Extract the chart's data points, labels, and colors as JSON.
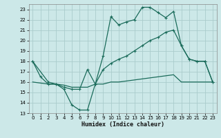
{
  "xlabel": "Humidex (Indice chaleur)",
  "xlim": [
    -0.5,
    23.5
  ],
  "ylim": [
    13,
    23.5
  ],
  "yticks": [
    13,
    14,
    15,
    16,
    17,
    18,
    19,
    20,
    21,
    22,
    23
  ],
  "xticks": [
    0,
    1,
    2,
    3,
    4,
    5,
    6,
    7,
    8,
    9,
    10,
    11,
    12,
    13,
    14,
    15,
    16,
    17,
    18,
    19,
    20,
    21,
    22,
    23
  ],
  "bg_color": "#cce8e8",
  "grid_color": "#aacccc",
  "line_color": "#1a6b5a",
  "curve1_x": [
    0,
    1,
    2,
    3,
    4,
    5,
    6,
    7,
    8,
    9,
    10,
    11,
    12,
    13,
    14,
    15,
    16,
    17,
    18,
    19,
    20,
    21,
    22,
    23
  ],
  "curve1_y": [
    18.0,
    16.5,
    15.8,
    15.8,
    15.3,
    13.8,
    13.3,
    13.3,
    15.8,
    18.5,
    22.3,
    21.5,
    21.8,
    22.0,
    23.2,
    23.2,
    22.7,
    22.2,
    22.8,
    19.5,
    18.2,
    18.0,
    18.0,
    16.0
  ],
  "curve2_x": [
    0,
    2,
    3,
    4,
    5,
    6,
    7,
    8,
    9,
    10,
    11,
    12,
    13,
    14,
    15,
    16,
    17,
    18,
    19,
    20,
    21,
    22,
    23
  ],
  "curve2_y": [
    18.0,
    16.0,
    15.8,
    15.5,
    15.3,
    15.3,
    17.2,
    15.8,
    17.2,
    17.8,
    18.2,
    18.5,
    19.0,
    19.5,
    20.0,
    20.3,
    20.8,
    21.0,
    19.5,
    18.2,
    18.0,
    18.0,
    16.0
  ],
  "curve3_x": [
    0,
    2,
    3,
    4,
    5,
    6,
    7,
    8,
    9,
    10,
    11,
    12,
    13,
    14,
    15,
    16,
    17,
    18,
    19,
    20,
    21,
    22,
    23
  ],
  "curve3_y": [
    16.0,
    15.8,
    15.8,
    15.7,
    15.5,
    15.5,
    15.5,
    15.8,
    15.8,
    16.0,
    16.0,
    16.1,
    16.2,
    16.3,
    16.4,
    16.5,
    16.6,
    16.7,
    16.0,
    16.0,
    16.0,
    16.0,
    16.0
  ]
}
